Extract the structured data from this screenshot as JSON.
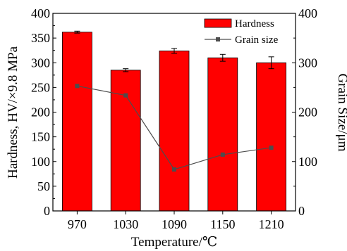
{
  "chart_data": {
    "type": "bar",
    "categories": [
      "970",
      "1030",
      "1090",
      "1150",
      "1210"
    ],
    "xlabel": "Temperature/℃",
    "ylabel_left": "Hardness, HV/×9.8 MPa",
    "ylabel_right": "Grain Size/μm",
    "ylim_left": [
      0,
      400
    ],
    "ylim_right": [
      0,
      400
    ],
    "yticks_left": [
      "0",
      "50",
      "100",
      "150",
      "200",
      "250",
      "300",
      "350",
      "400"
    ],
    "yticks_right": [
      "0",
      "100",
      "200",
      "300",
      "400"
    ],
    "series": [
      {
        "name": "Hardness",
        "kind": "bar",
        "axis": "left",
        "color": "#ff0000",
        "values": [
          362,
          285,
          324,
          310,
          300
        ],
        "errors": [
          2,
          3,
          5,
          7,
          12
        ]
      },
      {
        "name": "Grain size",
        "kind": "line",
        "axis": "right",
        "color": "#4d4d4d",
        "values": [
          253,
          234,
          84,
          114,
          128
        ]
      }
    ],
    "legend_position": "top-right",
    "grid": false
  }
}
